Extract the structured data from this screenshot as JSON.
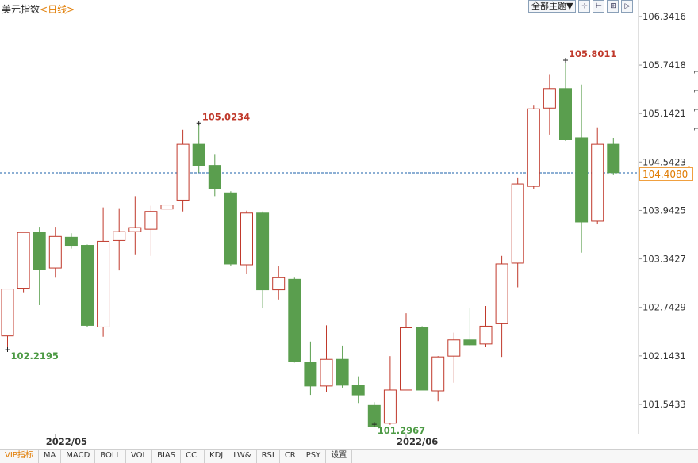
{
  "header": {
    "symbol": "美元指数",
    "period": "<日线>"
  },
  "toolbar": {
    "select_label": "全部主题▼",
    "buttons": [
      "⊹",
      "⊢",
      "⊞",
      "▷"
    ]
  },
  "colors": {
    "up": "#c0392b",
    "down": "#5a9e4e",
    "grid": "#d8d8d8",
    "last_price": "#1a5fa8",
    "accent": "#e07b00"
  },
  "current_price_label": "104.4080",
  "tabs": [
    "VIP指标",
    "MA",
    "MACD",
    "BOLL",
    "VOL",
    "BIAS",
    "CCI",
    "KDJ",
    "LW&",
    "RSI",
    "CR",
    "PSY",
    "设置"
  ],
  "chart_data": {
    "type": "candlestick",
    "y_ticks": [
      "106.3416",
      "105.7418",
      "105.1421",
      "104.5423",
      "103.9425",
      "103.3427",
      "102.7429",
      "102.1431",
      "101.5433"
    ],
    "ylim": [
      101.18,
      106.39
    ],
    "x_labels": [
      {
        "index": 3,
        "label": "2022/05"
      },
      {
        "index": 25,
        "label": "2022/06"
      }
    ],
    "last_price": 104.408,
    "annotations": [
      {
        "index": 0,
        "value": 102.2195,
        "label": "102.2195",
        "kind": "low"
      },
      {
        "index": 12,
        "value": 105.0234,
        "label": "105.0234",
        "kind": "high"
      },
      {
        "index": 23,
        "value": 101.2967,
        "label": "101.2967",
        "kind": "low"
      },
      {
        "index": 35,
        "value": 105.8011,
        "label": "105.8011",
        "kind": "high"
      }
    ],
    "candles": [
      {
        "open": 102.39,
        "high": 102.96,
        "low": 102.22,
        "close": 102.97
      },
      {
        "open": 102.98,
        "high": 103.66,
        "low": 102.93,
        "close": 103.67
      },
      {
        "open": 103.67,
        "high": 103.74,
        "low": 102.77,
        "close": 103.21
      },
      {
        "open": 103.23,
        "high": 103.74,
        "low": 103.11,
        "close": 103.62
      },
      {
        "open": 103.61,
        "high": 103.66,
        "low": 103.47,
        "close": 103.51
      },
      {
        "open": 103.51,
        "high": 103.52,
        "low": 102.5,
        "close": 102.52
      },
      {
        "open": 102.5,
        "high": 103.98,
        "low": 102.38,
        "close": 103.56
      },
      {
        "open": 103.57,
        "high": 103.97,
        "low": 103.2,
        "close": 103.68
      },
      {
        "open": 103.68,
        "high": 104.12,
        "low": 103.39,
        "close": 103.73
      },
      {
        "open": 103.71,
        "high": 104.0,
        "low": 103.38,
        "close": 103.93
      },
      {
        "open": 103.96,
        "high": 104.32,
        "low": 103.35,
        "close": 104.01
      },
      {
        "open": 104.07,
        "high": 104.94,
        "low": 103.93,
        "close": 104.76
      },
      {
        "open": 104.76,
        "high": 105.02,
        "low": 104.41,
        "close": 104.5
      },
      {
        "open": 104.5,
        "high": 104.64,
        "low": 104.12,
        "close": 104.21
      },
      {
        "open": 104.16,
        "high": 104.18,
        "low": 103.25,
        "close": 103.28
      },
      {
        "open": 103.27,
        "high": 103.94,
        "low": 103.16,
        "close": 103.91
      },
      {
        "open": 103.91,
        "high": 103.93,
        "low": 102.73,
        "close": 102.96
      },
      {
        "open": 102.96,
        "high": 103.25,
        "low": 102.84,
        "close": 103.11
      },
      {
        "open": 103.09,
        "high": 103.11,
        "low": 102.06,
        "close": 102.07
      },
      {
        "open": 102.06,
        "high": 102.32,
        "low": 101.66,
        "close": 101.77
      },
      {
        "open": 101.77,
        "high": 102.52,
        "low": 101.7,
        "close": 102.1
      },
      {
        "open": 102.1,
        "high": 102.27,
        "low": 101.75,
        "close": 101.78
      },
      {
        "open": 101.78,
        "high": 101.89,
        "low": 101.56,
        "close": 101.66
      },
      {
        "open": 101.53,
        "high": 101.57,
        "low": 101.3,
        "close": 101.27
      },
      {
        "open": 101.31,
        "high": 102.14,
        "low": 101.29,
        "close": 101.72
      },
      {
        "open": 101.72,
        "high": 102.67,
        "low": 101.75,
        "close": 102.49
      },
      {
        "open": 102.49,
        "high": 102.51,
        "low": 101.76,
        "close": 101.72
      },
      {
        "open": 101.71,
        "high": 102.14,
        "low": 101.58,
        "close": 102.13
      },
      {
        "open": 102.14,
        "high": 102.43,
        "low": 101.81,
        "close": 102.34
      },
      {
        "open": 102.34,
        "high": 102.74,
        "low": 102.26,
        "close": 102.28
      },
      {
        "open": 102.29,
        "high": 102.76,
        "low": 102.25,
        "close": 102.51
      },
      {
        "open": 102.54,
        "high": 103.38,
        "low": 102.13,
        "close": 103.28
      },
      {
        "open": 103.29,
        "high": 104.35,
        "low": 102.99,
        "close": 104.27
      },
      {
        "open": 104.24,
        "high": 105.24,
        "low": 104.21,
        "close": 105.2
      },
      {
        "open": 105.21,
        "high": 105.63,
        "low": 104.88,
        "close": 105.45
      },
      {
        "open": 105.45,
        "high": 105.8,
        "low": 104.8,
        "close": 104.82
      },
      {
        "open": 104.84,
        "high": 105.5,
        "low": 103.42,
        "close": 103.8
      },
      {
        "open": 103.81,
        "high": 104.97,
        "low": 103.77,
        "close": 104.76
      },
      {
        "open": 104.76,
        "high": 104.84,
        "low": 104.38,
        "close": 104.41
      }
    ]
  }
}
